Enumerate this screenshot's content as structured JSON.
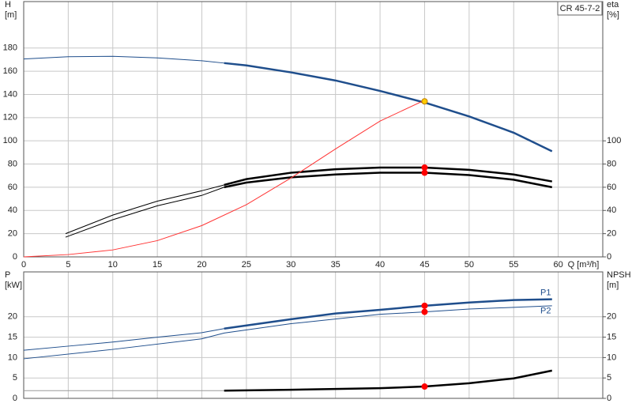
{
  "chart_data": [
    {
      "type": "line",
      "legend_label": "CR 45-7-2",
      "ylabel": [
        "H",
        "[m]"
      ],
      "y2label": [
        "eta",
        "[%]"
      ],
      "xlabel": "Q [m³/h]",
      "xlim": [
        0,
        65
      ],
      "xticks": [
        0,
        5,
        10,
        15,
        20,
        25,
        30,
        35,
        40,
        45,
        50,
        55,
        60
      ],
      "show_xtick_labels": true,
      "ylim": [
        0,
        220
      ],
      "yticks": [
        0,
        20,
        40,
        60,
        80,
        100,
        120,
        140,
        160,
        180
      ],
      "y2lim": [
        0,
        220
      ],
      "y2ticks": [
        0,
        20,
        40,
        60,
        80,
        100
      ],
      "grid": true,
      "thick_from_x": 22.5,
      "series": [
        {
          "color": "#1f4e8c",
          "emphasis": true,
          "x": [
            0,
            5,
            10,
            15,
            20,
            22.5,
            25,
            30,
            35,
            40,
            45,
            50,
            55,
            59.3
          ],
          "values": [
            170.5,
            172.5,
            172.8,
            171.5,
            169,
            167,
            165,
            159,
            152,
            143,
            133,
            121,
            107,
            91
          ]
        },
        {
          "color": "#000000",
          "emphasis": true,
          "axis": "y2",
          "x": [
            4.7,
            10,
            15,
            20,
            22.5,
            25,
            30,
            35,
            40,
            45,
            50,
            55,
            59.3
          ],
          "values": [
            20,
            36,
            48,
            57,
            62,
            67,
            72.5,
            75.5,
            77,
            77,
            75,
            71,
            65
          ]
        },
        {
          "color": "#000000",
          "emphasis": true,
          "axis": "y2",
          "x": [
            4.7,
            10,
            15,
            20,
            22.5,
            25,
            30,
            35,
            40,
            45,
            50,
            55,
            59.3
          ],
          "values": [
            17,
            32,
            44,
            53,
            60,
            64,
            68.5,
            71,
            72.5,
            72.5,
            70.5,
            66.5,
            60
          ]
        },
        {
          "color": "#ff3333",
          "emphasis": false,
          "x": [
            0,
            5,
            10,
            15,
            20,
            25,
            30,
            35,
            40,
            45
          ],
          "values": [
            0,
            2,
            6,
            14,
            27,
            45,
            68,
            93,
            117,
            135
          ]
        }
      ],
      "points": [
        {
          "x": 45,
          "y": 134,
          "color": "#ffcc00"
        },
        {
          "x": 45,
          "y": 77,
          "axis": "y2",
          "color": "#ff0000"
        },
        {
          "x": 45,
          "y": 72.5,
          "axis": "y2",
          "color": "#ff0000"
        }
      ]
    },
    {
      "type": "line",
      "ylabel": [
        "P",
        "[kW]"
      ],
      "y2label": [
        "NPSH",
        "[m]"
      ],
      "xlim": [
        0,
        65
      ],
      "xticks": [
        0,
        5,
        10,
        15,
        20,
        25,
        30,
        35,
        40,
        45,
        50,
        55,
        60
      ],
      "show_xtick_labels": false,
      "ylim": [
        0,
        31
      ],
      "yticks": [
        0,
        5,
        10,
        15,
        20
      ],
      "y2lim": [
        0,
        31
      ],
      "y2ticks": [
        0,
        5,
        10,
        15,
        20
      ],
      "grid": true,
      "thick_from_x": 22.5,
      "series": [
        {
          "name": "P1",
          "color": "#1f4e8c",
          "emphasis": true,
          "x": [
            0,
            5,
            10,
            15,
            20,
            22.5,
            30,
            35,
            40,
            45,
            50,
            55,
            59.3
          ],
          "values": [
            11.8,
            12.8,
            13.8,
            15,
            16.1,
            17.1,
            19.4,
            20.8,
            21.7,
            22.7,
            23.5,
            24.1,
            24.3
          ]
        },
        {
          "name": "P2",
          "color": "#1f4e8c",
          "emphasis": false,
          "x": [
            0,
            10,
            20,
            22.5,
            30,
            40,
            45,
            50,
            55,
            59.3
          ],
          "values": [
            9.7,
            12,
            14.6,
            16,
            18.3,
            20.6,
            21.2,
            21.9,
            22.3,
            22.7
          ]
        },
        {
          "color": "#000000",
          "thin_color": "#999999",
          "emphasis": true,
          "axis": "y2",
          "x": [
            0,
            22.5,
            30,
            35,
            40,
            45,
            50,
            55,
            59.3
          ],
          "values": [
            1.9,
            1.9,
            2.1,
            2.3,
            2.5,
            2.9,
            3.7,
            4.9,
            6.8
          ]
        }
      ],
      "points": [
        {
          "x": 45,
          "y": 22.7,
          "color": "#ff0000"
        },
        {
          "x": 45,
          "y": 21.2,
          "color": "#ff0000"
        },
        {
          "x": 45,
          "y": 2.9,
          "axis": "y2",
          "color": "#ff0000"
        }
      ]
    }
  ]
}
